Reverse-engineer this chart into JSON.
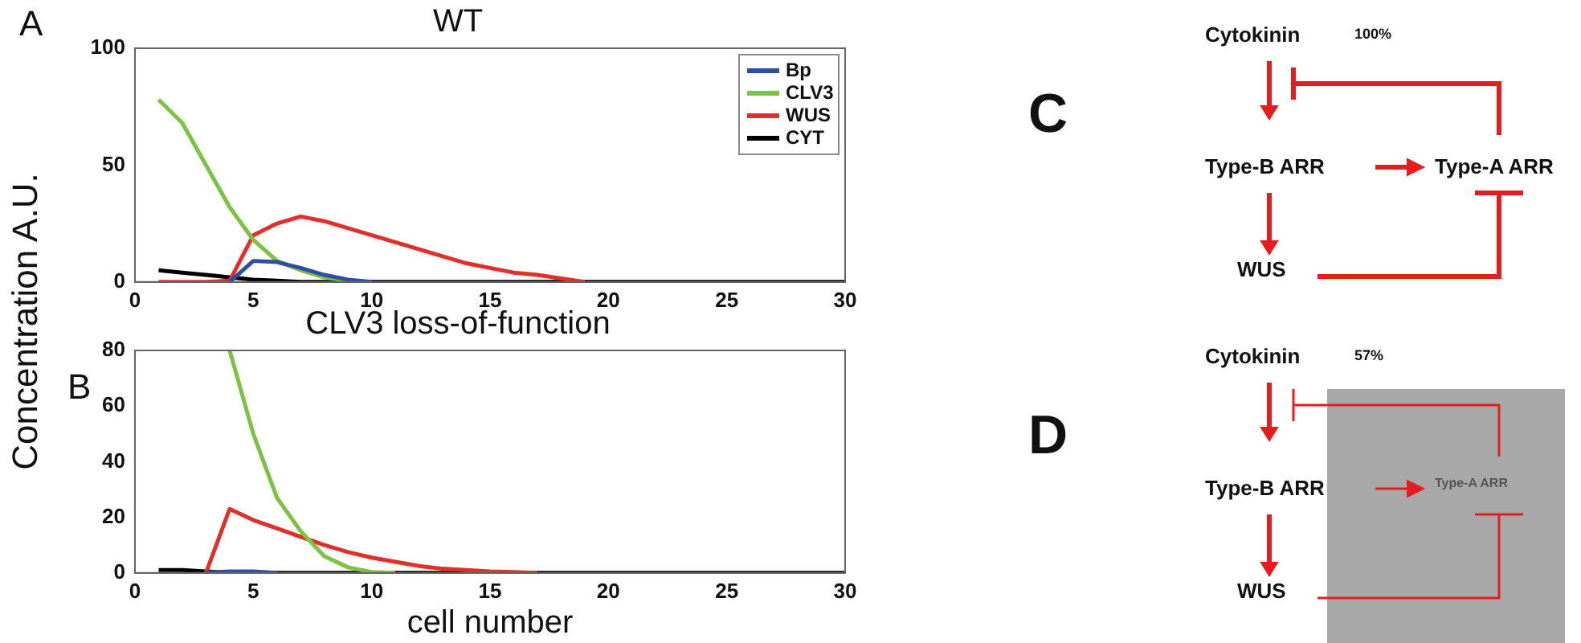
{
  "chart_data": [
    {
      "type": "line",
      "title": "WT",
      "ylabel": "Concentration A.U.",
      "annotations": [
        "A"
      ],
      "legend": "top right",
      "grid": false,
      "x": [
        1,
        2,
        3,
        4,
        5,
        6,
        7,
        8,
        9,
        10,
        11,
        12,
        13,
        14,
        15,
        16,
        17,
        18,
        19,
        20,
        21,
        22,
        23,
        24,
        25,
        26,
        27,
        28,
        29,
        30
      ],
      "xlim": [
        0,
        30
      ],
      "xticks": [
        0,
        5,
        10,
        15,
        20,
        25,
        30
      ],
      "ylim": [
        0,
        100
      ],
      "yticks": [
        0,
        50,
        100
      ],
      "series": [
        {
          "name": "Bp",
          "color": "#2e4fa0",
          "values": [
            null,
            null,
            null,
            0,
            9,
            8.5,
            6,
            3,
            1,
            0,
            null,
            null,
            null,
            null,
            null,
            null,
            null,
            null,
            null,
            null,
            null,
            null,
            null,
            null,
            null,
            null,
            null,
            null,
            null,
            null
          ]
        },
        {
          "name": "CLV3",
          "color": "#7dc242",
          "values": [
            78,
            68,
            50,
            32,
            18,
            9,
            5,
            2,
            0.5,
            0,
            null,
            null,
            null,
            null,
            null,
            null,
            null,
            null,
            null,
            null,
            null,
            null,
            null,
            null,
            null,
            null,
            null,
            null,
            null,
            null
          ]
        },
        {
          "name": "WUS",
          "color": "#e0302a",
          "values": [
            0,
            0,
            0,
            0.5,
            20,
            25,
            28,
            26,
            23,
            20,
            17,
            14,
            11,
            8,
            6,
            4,
            3,
            1.5,
            0,
            null,
            null,
            null,
            null,
            null,
            null,
            null,
            null,
            null,
            null,
            null
          ]
        },
        {
          "name": "CYT",
          "color": "#000000",
          "values": [
            5,
            4,
            3,
            2,
            1,
            0.5,
            0,
            0,
            0,
            0,
            0,
            0,
            0,
            0,
            0,
            0,
            0,
            0,
            0,
            0,
            0,
            0,
            0,
            0,
            0,
            0,
            0,
            0,
            0,
            0
          ]
        }
      ]
    },
    {
      "type": "line",
      "title": "CLV3 loss-of-function",
      "xlabel": "cell number",
      "annotations": [
        "B"
      ],
      "grid": false,
      "x": [
        1,
        2,
        3,
        4,
        5,
        6,
        7,
        8,
        9,
        10,
        11,
        12,
        13,
        14,
        15,
        16,
        17,
        18,
        19,
        20,
        21,
        22,
        23,
        24,
        25,
        26,
        27,
        28,
        29,
        30
      ],
      "xlim": [
        0,
        30
      ],
      "xticks": [
        0,
        5,
        10,
        15,
        20,
        25,
        30
      ],
      "ylim": [
        0,
        80
      ],
      "yticks": [
        0,
        20,
        40,
        60,
        80
      ],
      "series": [
        {
          "color": "#2e4fa0",
          "values": [
            null,
            null,
            0,
            0.5,
            0.5,
            0,
            null,
            null,
            null,
            null,
            null,
            null,
            null,
            null,
            null,
            null,
            null,
            null,
            null,
            null,
            null,
            null,
            null,
            null,
            null,
            null,
            null,
            null,
            null,
            null
          ]
        },
        {
          "color": "#7dc242",
          "values": [
            null,
            null,
            null,
            80,
            50,
            27,
            15,
            6,
            2,
            0.3,
            0,
            null,
            null,
            null,
            null,
            null,
            null,
            null,
            null,
            null,
            null,
            null,
            null,
            null,
            null,
            null,
            null,
            null,
            null,
            null
          ]
        },
        {
          "color": "#e0302a",
          "values": [
            null,
            null,
            0,
            23,
            19,
            16,
            13,
            10,
            7.5,
            5.5,
            4,
            2.5,
            1.5,
            1,
            0.5,
            0.3,
            0,
            null,
            null,
            null,
            null,
            null,
            null,
            null,
            null,
            null,
            null,
            null,
            null,
            null
          ]
        },
        {
          "color": "#000000",
          "values": [
            1,
            1,
            0.5,
            0,
            0,
            0,
            0,
            0,
            0,
            0,
            0,
            0,
            0,
            0,
            0,
            0,
            0,
            0,
            0,
            0,
            0,
            0,
            0,
            0,
            0,
            0,
            0,
            0,
            0,
            0
          ]
        }
      ]
    },
    {
      "type": "other",
      "annotations": [
        "C",
        "Cytokinin",
        "100%",
        "Type-B ARR",
        "Type-A ARR",
        "WUS"
      ]
    },
    {
      "type": "other",
      "annotations": [
        "D",
        "Cytokinin",
        "57%",
        "Type-B ARR",
        "Type-A ARR",
        "WUS"
      ]
    }
  ]
}
